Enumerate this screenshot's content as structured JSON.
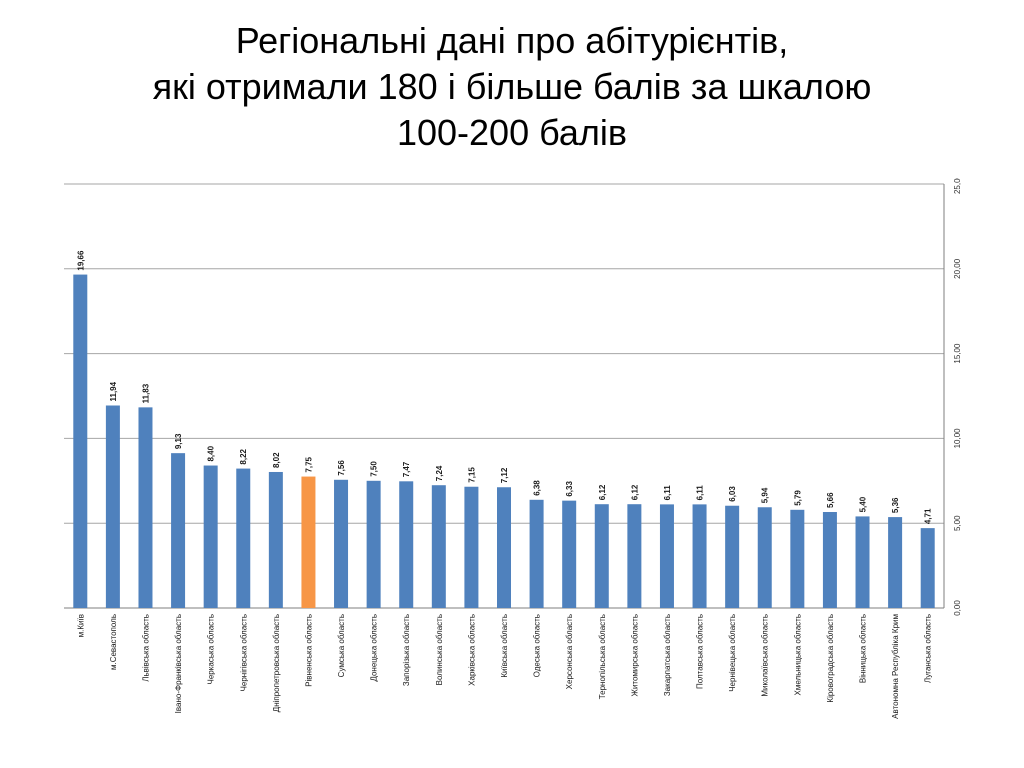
{
  "slide": {
    "title_lines": [
      "Регіональні дані про абітурієнтів,",
      "які отримали 180 і більше балів за шкалою",
      "100-200 балів"
    ]
  },
  "colors": {
    "bar": "#4f81bd",
    "highlight": "#f79646",
    "grid": "#a6a6a6",
    "axis": "#7f7f7f"
  },
  "chart_data": {
    "type": "bar",
    "orientation": "vertical",
    "title": "",
    "xlabel": "",
    "ylabel": "",
    "y_axis_position": "right",
    "ylim": [
      0,
      25
    ],
    "yticks": [
      "0,00",
      "5,00",
      "10,00",
      "15,00",
      "20,00",
      "25,00"
    ],
    "grid": true,
    "legend": "none",
    "highlight_category": "Рівненська область",
    "categories": [
      "м.Київ",
      "м.Севастополь",
      "Львівська область",
      "Івано-Франківська область",
      "Черкаська область",
      "Чернігівська область",
      "Дніпропетровська область",
      "Рівненська область",
      "Сумська область",
      "Донецька область",
      "Запорізька область",
      "Волинська область",
      "Харківська область",
      "Київська область",
      "Одеська область",
      "Херсонська область",
      "Тернопільська область",
      "Житомирська область",
      "Закарпатська область",
      "Полтавська область",
      "Чернівецька область",
      "Миколаївська область",
      "Хмельницька область",
      "Кіровоградська область",
      "Вінницька область",
      "Автономна Республіка Крим",
      "Луганська область"
    ],
    "values": [
      19.66,
      11.94,
      11.83,
      9.13,
      8.4,
      8.22,
      8.02,
      7.75,
      7.56,
      7.5,
      7.47,
      7.24,
      7.15,
      7.12,
      6.38,
      6.33,
      6.12,
      6.12,
      6.11,
      6.11,
      6.03,
      5.94,
      5.79,
      5.66,
      5.4,
      5.36,
      4.71
    ],
    "value_labels": [
      "19,66",
      "11,94",
      "11,83",
      "9,13",
      "8,40",
      "8,22",
      "8,02",
      "7,75",
      "7,56",
      "7,50",
      "7,47",
      "7,24",
      "7,15",
      "7,12",
      "6,38",
      "6,33",
      "6,12",
      "6,12",
      "6,11",
      "6,11",
      "6,03",
      "5,94",
      "5,79",
      "5,66",
      "5,40",
      "5,36",
      "4,71"
    ]
  }
}
